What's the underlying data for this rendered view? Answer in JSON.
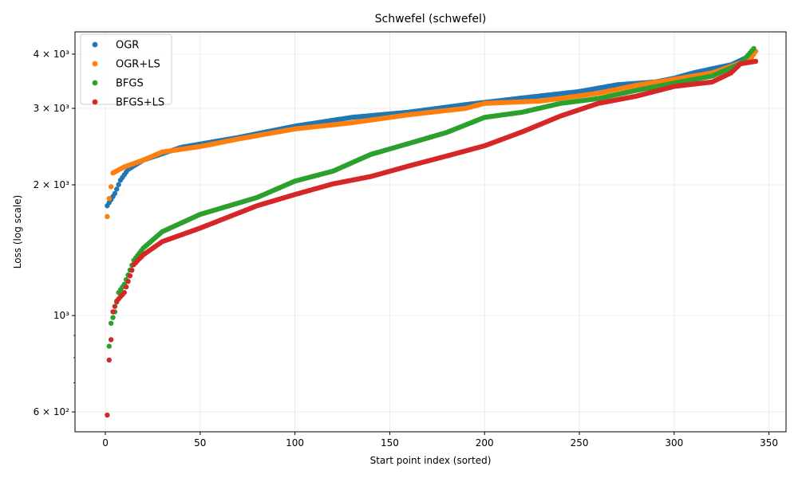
{
  "chart_data": {
    "type": "scatter",
    "title": "Schwefel (schwefel)",
    "xlabel": "Start point index (sorted)",
    "ylabel": "Loss (log scale)",
    "yscale": "log",
    "xlim": [
      -16,
      359
    ],
    "ylim": [
      540,
      4500
    ],
    "x_ticks": [
      0,
      50,
      100,
      150,
      200,
      250,
      300,
      350
    ],
    "y_ticks": [
      {
        "value": 600,
        "label": "6 × 10²"
      },
      {
        "value": 1000,
        "label": "10³"
      },
      {
        "value": 2000,
        "label": "2 × 10³"
      },
      {
        "value": 3000,
        "label": "3 × 10³"
      },
      {
        "value": 4000,
        "label": "4 × 10³"
      }
    ],
    "y_minor_ticks": [
      700,
      800,
      900
    ],
    "grid": true,
    "legend_position": "top-left",
    "series": [
      {
        "name": "OGR",
        "color": "#1f77b4",
        "points": [
          [
            1,
            1790
          ],
          [
            5,
            1910
          ],
          [
            8,
            2050
          ],
          [
            12,
            2170
          ],
          [
            20,
            2280
          ],
          [
            40,
            2440
          ],
          [
            70,
            2570
          ],
          [
            100,
            2730
          ],
          [
            130,
            2860
          ],
          [
            160,
            2940
          ],
          [
            190,
            3060
          ],
          [
            220,
            3170
          ],
          [
            250,
            3280
          ],
          [
            270,
            3400
          ],
          [
            290,
            3450
          ],
          [
            300,
            3520
          ],
          [
            310,
            3620
          ],
          [
            320,
            3700
          ],
          [
            330,
            3780
          ],
          [
            340,
            3960
          ],
          [
            342,
            4050
          ]
        ]
      },
      {
        "name": "OGR+LS",
        "color": "#ff7f0e",
        "points": [
          [
            1,
            1690
          ],
          [
            2,
            1860
          ],
          [
            3,
            1980
          ],
          [
            4,
            2130
          ],
          [
            10,
            2200
          ],
          [
            20,
            2280
          ],
          [
            30,
            2380
          ],
          [
            50,
            2450
          ],
          [
            70,
            2550
          ],
          [
            100,
            2690
          ],
          [
            130,
            2780
          ],
          [
            160,
            2900
          ],
          [
            190,
            3000
          ],
          [
            200,
            3080
          ],
          [
            230,
            3120
          ],
          [
            260,
            3250
          ],
          [
            280,
            3390
          ],
          [
            300,
            3500
          ],
          [
            320,
            3620
          ],
          [
            330,
            3750
          ],
          [
            340,
            3880
          ],
          [
            343,
            4060
          ]
        ]
      },
      {
        "name": "BFGS",
        "color": "#2ca02c",
        "points": [
          [
            2,
            850
          ],
          [
            3,
            960
          ],
          [
            5,
            1020
          ],
          [
            7,
            1130
          ],
          [
            10,
            1180
          ],
          [
            12,
            1240
          ],
          [
            15,
            1340
          ],
          [
            20,
            1430
          ],
          [
            30,
            1560
          ],
          [
            50,
            1710
          ],
          [
            80,
            1870
          ],
          [
            100,
            2040
          ],
          [
            120,
            2150
          ],
          [
            140,
            2350
          ],
          [
            160,
            2490
          ],
          [
            180,
            2640
          ],
          [
            200,
            2860
          ],
          [
            220,
            2940
          ],
          [
            240,
            3080
          ],
          [
            260,
            3160
          ],
          [
            280,
            3300
          ],
          [
            300,
            3430
          ],
          [
            320,
            3560
          ],
          [
            335,
            3800
          ],
          [
            342,
            4120
          ]
        ]
      },
      {
        "name": "BFGS+LS",
        "color": "#d62728",
        "points": [
          [
            1,
            590
          ],
          [
            2,
            790
          ],
          [
            3,
            880
          ],
          [
            4,
            1020
          ],
          [
            6,
            1080
          ],
          [
            10,
            1130
          ],
          [
            15,
            1310
          ],
          [
            20,
            1380
          ],
          [
            30,
            1480
          ],
          [
            50,
            1590
          ],
          [
            80,
            1790
          ],
          [
            100,
            1900
          ],
          [
            120,
            2010
          ],
          [
            140,
            2090
          ],
          [
            160,
            2210
          ],
          [
            180,
            2330
          ],
          [
            200,
            2460
          ],
          [
            220,
            2650
          ],
          [
            240,
            2880
          ],
          [
            260,
            3080
          ],
          [
            280,
            3200
          ],
          [
            300,
            3370
          ],
          [
            320,
            3450
          ],
          [
            330,
            3620
          ],
          [
            335,
            3800
          ],
          [
            343,
            3850
          ]
        ]
      }
    ]
  }
}
